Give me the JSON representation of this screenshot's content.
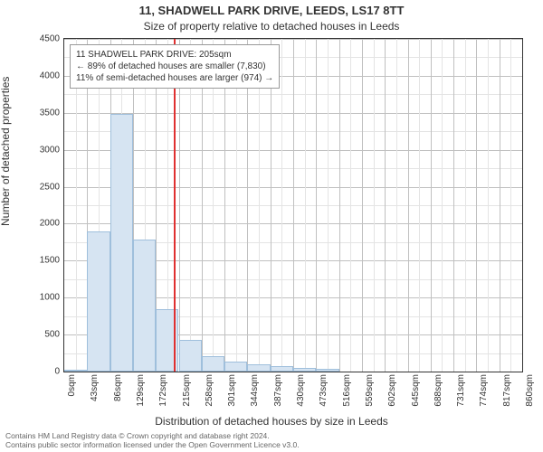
{
  "chart": {
    "type": "histogram",
    "title": "11, SHADWELL PARK DRIVE, LEEDS, LS17 8TT",
    "subtitle": "Size of property relative to detached houses in Leeds",
    "ylabel": "Number of detached properties",
    "xlabel": "Distribution of detached houses by size in Leeds",
    "title_fontsize": 13,
    "subtitle_fontsize": 12,
    "label_fontsize": 12,
    "tick_fontsize": 10,
    "background_color": "#ffffff",
    "grid_color_major": "#c0c0c0",
    "grid_color_minor": "#e4e4e4",
    "border_color": "#333333",
    "bar_fill": "#d6e4f2",
    "bar_border": "#9fbfdc",
    "ref_line_color": "#e03030",
    "xlim": [
      0,
      860
    ],
    "ylim": [
      0,
      4500
    ],
    "ytick_step": 500,
    "ytick_labels": [
      "0",
      "500",
      "1000",
      "1500",
      "2000",
      "2500",
      "3000",
      "3500",
      "4000",
      "4500"
    ],
    "xtick_step": 43,
    "xtick_labels": [
      "0sqm",
      "43sqm",
      "86sqm",
      "129sqm",
      "172sqm",
      "215sqm",
      "258sqm",
      "301sqm",
      "344sqm",
      "387sqm",
      "430sqm",
      "473sqm",
      "516sqm",
      "559sqm",
      "602sqm",
      "645sqm",
      "688sqm",
      "731sqm",
      "774sqm",
      "817sqm",
      "860sqm"
    ],
    "bar_bin_width": 43,
    "bars": [
      {
        "x0": 0,
        "value": 0
      },
      {
        "x0": 43,
        "value": 1900
      },
      {
        "x0": 86,
        "value": 3480
      },
      {
        "x0": 129,
        "value": 1780
      },
      {
        "x0": 172,
        "value": 840
      },
      {
        "x0": 215,
        "value": 430
      },
      {
        "x0": 258,
        "value": 210
      },
      {
        "x0": 301,
        "value": 140
      },
      {
        "x0": 344,
        "value": 100
      },
      {
        "x0": 387,
        "value": 70
      },
      {
        "x0": 430,
        "value": 50
      },
      {
        "x0": 473,
        "value": 40
      }
    ],
    "ref_line_x": 205,
    "annotation": {
      "line1": "11 SHADWELL PARK DRIVE: 205sqm",
      "line2": "← 89% of detached houses are smaller (7,830)",
      "line3": "11% of semi-detached houses are larger (974) →"
    }
  },
  "caption": {
    "line1": "Contains HM Land Registry data © Crown copyright and database right 2024.",
    "line2": "Contains public sector information licensed under the Open Government Licence v3.0."
  }
}
